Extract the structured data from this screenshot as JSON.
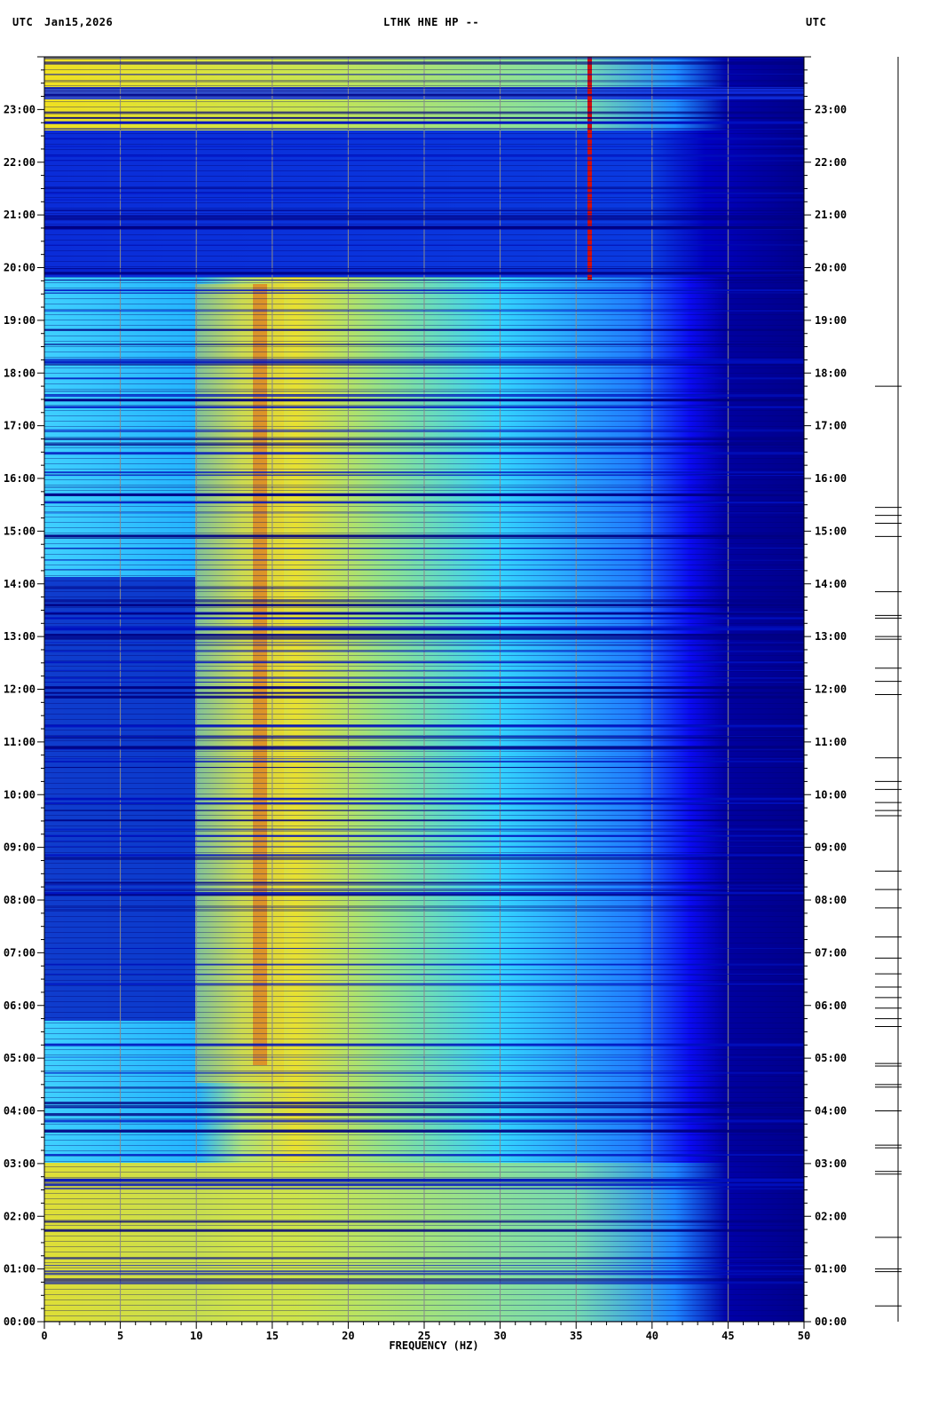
{
  "header": {
    "left_tz": "UTC",
    "date": "Jan15,2026",
    "station": "LTHK HNE HP --",
    "right_tz": "UTC"
  },
  "chart_data": {
    "type": "heatmap",
    "title": "LTHK HNE HP --",
    "xlabel": "FREQUENCY (HZ)",
    "ylabel": "UTC",
    "x_ticks": [
      0,
      5,
      10,
      15,
      20,
      25,
      30,
      35,
      40,
      45,
      50
    ],
    "xlim": [
      0,
      50
    ],
    "y_ticks": [
      "00:00",
      "01:00",
      "02:00",
      "03:00",
      "04:00",
      "05:00",
      "06:00",
      "07:00",
      "08:00",
      "09:00",
      "10:00",
      "11:00",
      "12:00",
      "13:00",
      "14:00",
      "15:00",
      "16:00",
      "17:00",
      "18:00",
      "19:00",
      "20:00",
      "21:00",
      "22:00",
      "23:00"
    ],
    "ylim_hours": [
      0,
      24
    ],
    "colormap": [
      "#00008b",
      "#0000ff",
      "#00c8ff",
      "#ffff00",
      "#ff0000"
    ],
    "spectral_features": [
      {
        "description": "line at ~36 Hz",
        "freq_hz": 36,
        "start_h": 19.7,
        "end_h": 24
      },
      {
        "description": "band ~12-15 Hz energetic",
        "freq_hz": 14.5,
        "start_h": 5,
        "end_h": 19.5
      }
    ],
    "event_marks_hours": [
      0.3,
      0.95,
      1.0,
      1.6,
      2.8,
      2.85,
      3.3,
      3.35,
      4.0,
      4.45,
      4.5,
      4.85,
      4.9,
      5.6,
      5.75,
      5.95,
      6.15,
      6.35,
      6.6,
      6.9,
      7.3,
      7.85,
      8.2,
      8.55,
      9.6,
      9.7,
      9.85,
      10.1,
      10.25,
      10.7,
      11.9,
      12.15,
      12.4,
      12.95,
      13.0,
      13.35,
      13.4,
      13.85,
      14.9,
      15.15,
      15.3,
      15.45,
      17.75
    ]
  }
}
